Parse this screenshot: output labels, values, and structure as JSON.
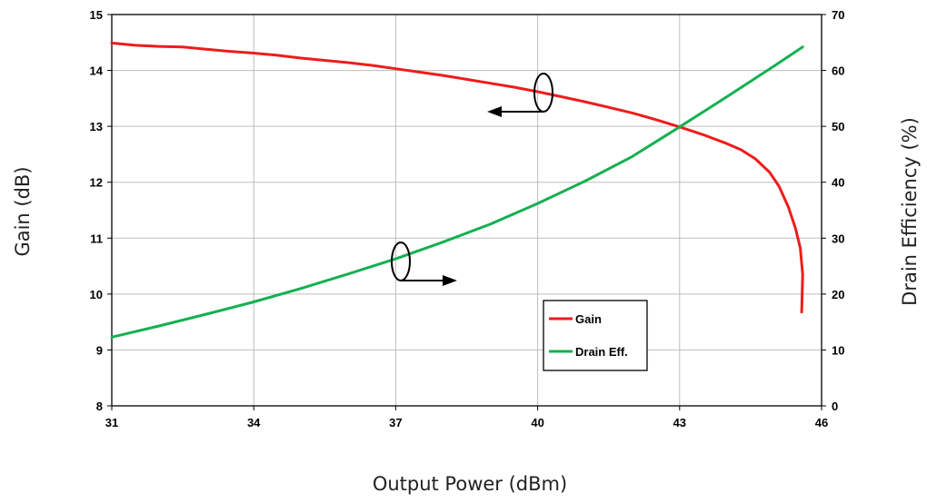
{
  "chart_data": {
    "type": "line",
    "xlabel": "Output Power (dBm)",
    "ylabel_left": "Gain (dB)",
    "ylabel_right": "Drain Efficiency (%)",
    "xlim": [
      31,
      46
    ],
    "ylim_left": [
      8,
      15
    ],
    "ylim_right": [
      0,
      70
    ],
    "x_ticks": [
      "31",
      "34",
      "37",
      "40",
      "43",
      "46"
    ],
    "y_left_ticks": [
      "8",
      "9",
      "10",
      "11",
      "12",
      "13",
      "14",
      "15"
    ],
    "y_right_ticks": [
      "0",
      "10",
      "20",
      "30",
      "40",
      "50",
      "60",
      "70"
    ],
    "grid": true,
    "legend_position": "center-right",
    "series": [
      {
        "name": "Gain",
        "axis": "left",
        "color": "#ee1c1c",
        "points": [
          [
            31,
            14.49
          ],
          [
            31.5,
            14.45
          ],
          [
            32,
            14.43
          ],
          [
            32.5,
            14.42
          ],
          [
            33,
            14.38
          ],
          [
            33.5,
            14.34
          ],
          [
            34,
            14.31
          ],
          [
            34.5,
            14.27
          ],
          [
            35,
            14.22
          ],
          [
            35.5,
            14.18
          ],
          [
            36,
            14.14
          ],
          [
            36.5,
            14.09
          ],
          [
            37,
            14.03
          ],
          [
            37.5,
            13.97
          ],
          [
            38,
            13.91
          ],
          [
            38.5,
            13.84
          ],
          [
            39,
            13.77
          ],
          [
            39.5,
            13.7
          ],
          [
            40,
            13.62
          ],
          [
            40.5,
            13.53
          ],
          [
            41,
            13.44
          ],
          [
            41.5,
            13.34
          ],
          [
            42,
            13.24
          ],
          [
            42.5,
            13.12
          ],
          [
            43,
            12.99
          ],
          [
            43.5,
            12.85
          ],
          [
            44,
            12.69
          ],
          [
            44.3,
            12.58
          ],
          [
            44.6,
            12.42
          ],
          [
            44.9,
            12.18
          ],
          [
            45.1,
            11.93
          ],
          [
            45.3,
            11.55
          ],
          [
            45.45,
            11.17
          ],
          [
            45.55,
            10.82
          ],
          [
            45.6,
            10.35
          ],
          [
            45.58,
            9.68
          ]
        ]
      },
      {
        "name": "Drain Eff.",
        "axis": "right",
        "color": "#14b050",
        "points": [
          [
            31,
            12.3
          ],
          [
            32,
            14.3
          ],
          [
            33,
            16.4
          ],
          [
            34,
            18.6
          ],
          [
            35,
            21.0
          ],
          [
            36,
            23.6
          ],
          [
            37,
            26.3
          ],
          [
            38,
            29.3
          ],
          [
            39,
            32.5
          ],
          [
            40,
            36.2
          ],
          [
            41,
            40.2
          ],
          [
            42,
            44.6
          ],
          [
            43,
            49.9
          ],
          [
            44,
            55.3
          ],
          [
            45,
            60.8
          ],
          [
            45.6,
            64.2
          ]
        ]
      }
    ]
  }
}
